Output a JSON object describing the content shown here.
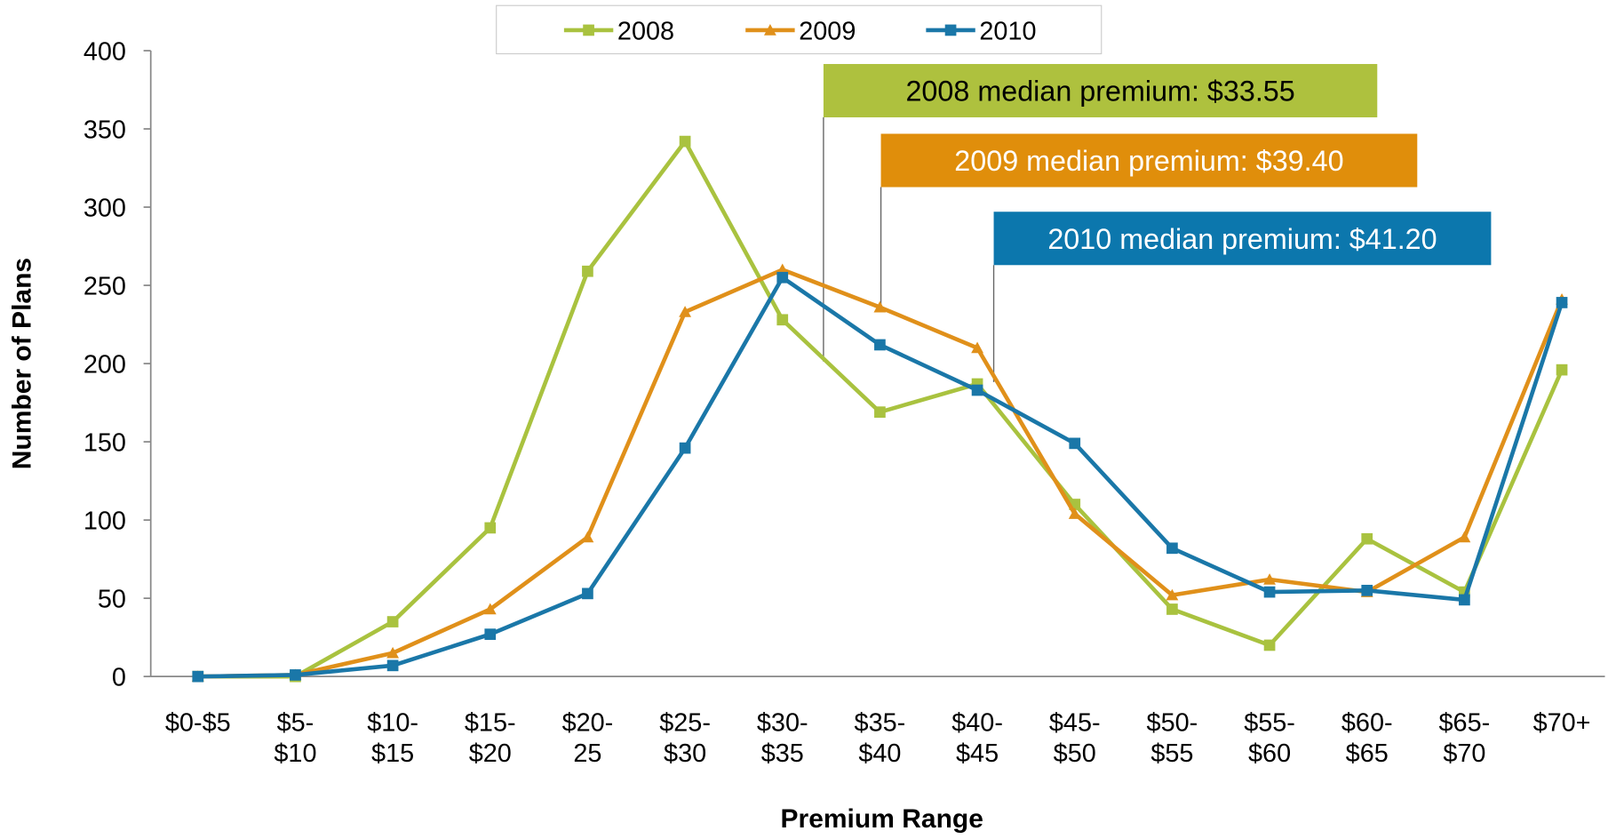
{
  "chart_data": {
    "type": "line",
    "x_label": "Premium Range",
    "y_label": "Number of Plans",
    "categories": [
      "$0-$5",
      "$5-\n$10",
      "$10-\n$15",
      "$15-\n$20",
      "$20-\n25",
      "$25-\n$30",
      "$30-\n$35",
      "$35-\n$40",
      "$40-\n$45",
      "$45-\n$50",
      "$50-\n$55",
      "$55-\n$60",
      "$60-\n$65",
      "$65-\n$70",
      "$70+"
    ],
    "series": [
      {
        "name": "2008",
        "color": "#a9c23f",
        "marker": "square",
        "values": [
          0,
          0,
          35,
          95,
          259,
          342,
          228,
          169,
          187,
          110,
          43,
          20,
          88,
          54,
          196
        ]
      },
      {
        "name": "2009",
        "color": "#e0901a",
        "marker": "triangle",
        "values": [
          0,
          1,
          15,
          43,
          89,
          233,
          260,
          236,
          210,
          104,
          52,
          62,
          54,
          89,
          241
        ]
      },
      {
        "name": "2010",
        "color": "#1a77a8",
        "marker": "square",
        "values": [
          0,
          1,
          7,
          27,
          53,
          146,
          255,
          212,
          183,
          149,
          82,
          54,
          55,
          49,
          239
        ]
      }
    ],
    "ylim": [
      0,
      400
    ],
    "yticks": [
      0,
      50,
      100,
      150,
      200,
      250,
      300,
      350,
      400
    ],
    "legend": "top",
    "annotations": [
      {
        "text": "2008 median premium: $33.55",
        "color": "#aec13e",
        "text_color": "#000000"
      },
      {
        "text": "2009 median premium: $39.40",
        "color": "#e08e0b",
        "text_color": "#ffffff"
      },
      {
        "text": "2010 median premium: $41.20",
        "color": "#0c77ad",
        "text_color": "#ffffff"
      }
    ]
  }
}
